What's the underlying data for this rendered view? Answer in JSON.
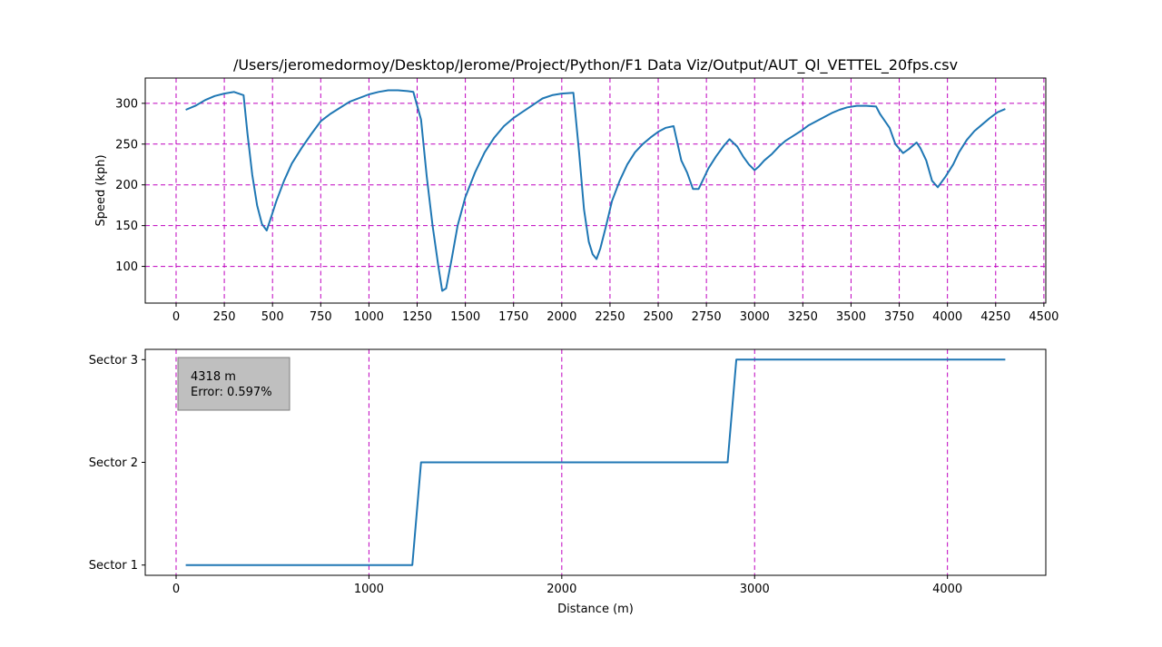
{
  "chart_data": [
    {
      "type": "line",
      "title": "/Users/jeromedormoy/Desktop/Jerome/Project/Python/F1 Data Viz/Output/AUT_Ql_VETTEL_20fps.csv",
      "xlabel": "",
      "ylabel": "Speed (kph)",
      "xlim": [
        -160,
        4510
      ],
      "ylim": [
        55,
        331
      ],
      "xticks": [
        0,
        250,
        500,
        750,
        1000,
        1250,
        1500,
        1750,
        2000,
        2250,
        2500,
        2750,
        3000,
        3250,
        3500,
        3750,
        4000,
        4250,
        4500
      ],
      "yticks": [
        100,
        150,
        200,
        250,
        300
      ],
      "grid": true,
      "series": [
        {
          "color": "#1f77b4",
          "x": [
            50,
            100,
            150,
            200,
            250,
            300,
            350,
            370,
            395,
            420,
            445,
            470,
            495,
            520,
            560,
            600,
            650,
            700,
            750,
            800,
            900,
            1000,
            1050,
            1100,
            1150,
            1200,
            1230,
            1270,
            1300,
            1330,
            1360,
            1380,
            1400,
            1430,
            1460,
            1500,
            1550,
            1600,
            1650,
            1700,
            1750,
            1800,
            1850,
            1900,
            1950,
            2000,
            2060,
            2090,
            2115,
            2140,
            2160,
            2180,
            2200,
            2230,
            2260,
            2300,
            2340,
            2380,
            2420,
            2460,
            2500,
            2540,
            2580,
            2620,
            2650,
            2680,
            2710,
            2730,
            2760,
            2800,
            2840,
            2870,
            2910,
            2940,
            2970,
            3000,
            3020,
            3050,
            3090,
            3130,
            3160,
            3200,
            3240,
            3280,
            3320,
            3360,
            3400,
            3440,
            3480,
            3530,
            3580,
            3630,
            3650,
            3700,
            3730,
            3770,
            3800,
            3840,
            3860,
            3890,
            3920,
            3950,
            3990,
            4030,
            4060,
            4100,
            4140,
            4180,
            4220,
            4260,
            4300
          ],
          "y": [
            292,
            297,
            304,
            309,
            312,
            314,
            310,
            263,
            212,
            175,
            152,
            144,
            162,
            180,
            205,
            226,
            245,
            262,
            278,
            287,
            302,
            311,
            314,
            316,
            316,
            315,
            314,
            280,
            210,
            150,
            100,
            70,
            73,
            110,
            150,
            185,
            215,
            240,
            258,
            272,
            282,
            290,
            298,
            306,
            310,
            312,
            313,
            240,
            170,
            130,
            115,
            109,
            122,
            150,
            180,
            205,
            225,
            240,
            250,
            258,
            265,
            270,
            272,
            230,
            215,
            195,
            195,
            205,
            220,
            235,
            248,
            256,
            247,
            235,
            225,
            218,
            222,
            230,
            238,
            248,
            254,
            260,
            266,
            273,
            278,
            283,
            288,
            292,
            295,
            297,
            297,
            296,
            287,
            270,
            250,
            239,
            244,
            252,
            245,
            230,
            205,
            197,
            210,
            225,
            240,
            255,
            266,
            274,
            282,
            289,
            293
          ]
        }
      ]
    },
    {
      "type": "line",
      "title": "",
      "xlabel": "Distance (m)",
      "ylabel": "",
      "xlim": [
        -160,
        4510
      ],
      "ylim": [
        0.9,
        3.1
      ],
      "xticks": [
        0,
        1000,
        2000,
        3000,
        4000
      ],
      "yticks": [
        1,
        2,
        3
      ],
      "ytick_labels": [
        "Sector 1",
        "Sector 2",
        "Sector 3"
      ],
      "grid": true,
      "grid_axis": "x",
      "series": [
        {
          "color": "#1f77b4",
          "x": [
            50,
            1225,
            1270,
            2860,
            2905,
            4300
          ],
          "y": [
            1,
            1,
            2,
            2,
            3,
            3
          ]
        }
      ],
      "annotation": {
        "line1": "4318 m",
        "line2": "Error: 0.597%",
        "box_color": "#bfbfbf"
      }
    }
  ]
}
